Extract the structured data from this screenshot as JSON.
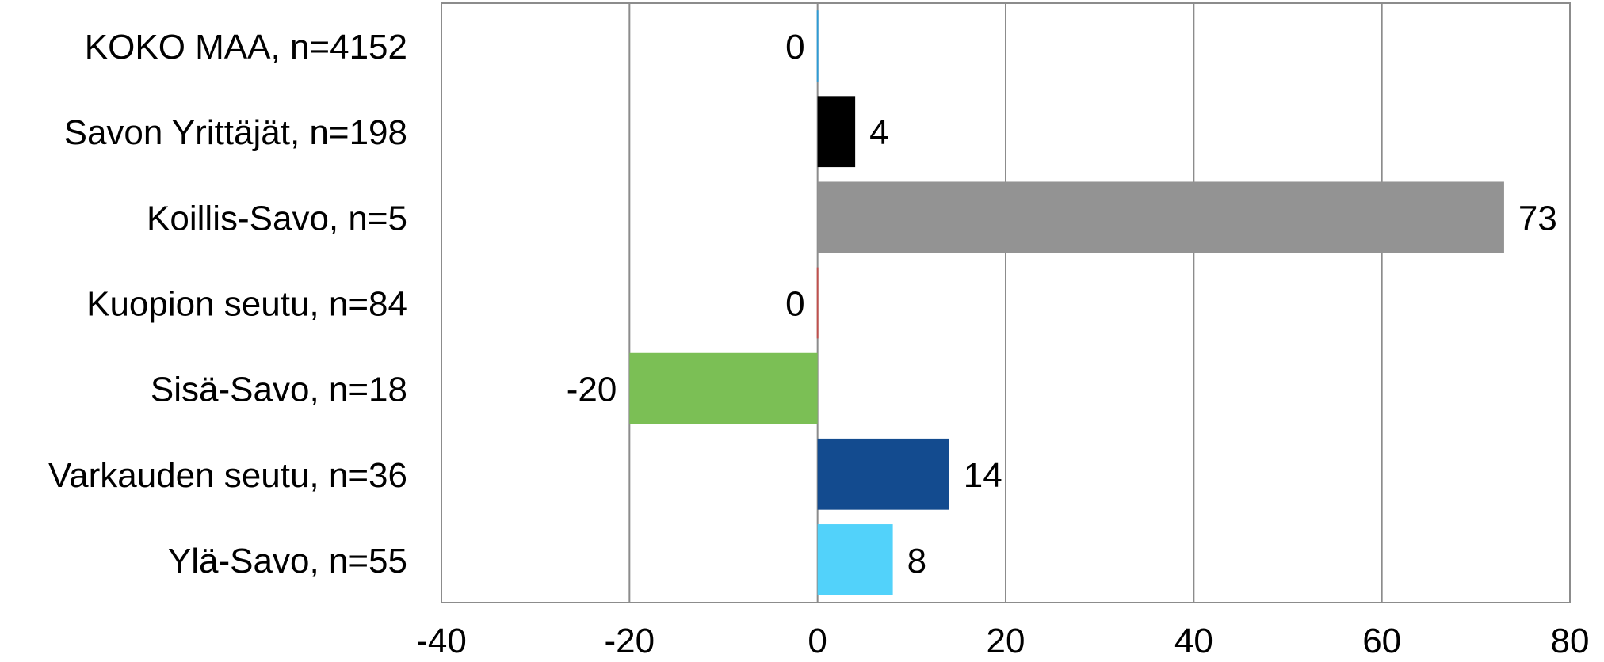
{
  "chart_data": {
    "type": "bar",
    "orientation": "horizontal",
    "categories": [
      "KOKO MAA, n=4152",
      "Savon Yrittäjät, n=198",
      "Koillis-Savo, n=5",
      "Kuopion seutu, n=84",
      "Sisä-Savo, n=18",
      "Varkauden seutu, n=36",
      "Ylä-Savo, n=55"
    ],
    "values": [
      0,
      4,
      73,
      0,
      -20,
      14,
      8
    ],
    "value_labels": [
      "0",
      "4",
      "73",
      "0",
      "-20",
      "14",
      "8"
    ],
    "colors": [
      "#2e9bd6",
      "#000000",
      "#939393",
      "#c0504d",
      "#7bbf55",
      "#134b8f",
      "#52d2fa"
    ],
    "xlim": [
      -40,
      80
    ],
    "xticks": [
      -40,
      -20,
      0,
      20,
      40,
      60,
      80
    ],
    "xtick_labels": [
      "-40",
      "-20",
      "0",
      "20",
      "40",
      "60",
      "80"
    ],
    "grid": true,
    "title": "",
    "xlabel": "",
    "ylabel": ""
  }
}
